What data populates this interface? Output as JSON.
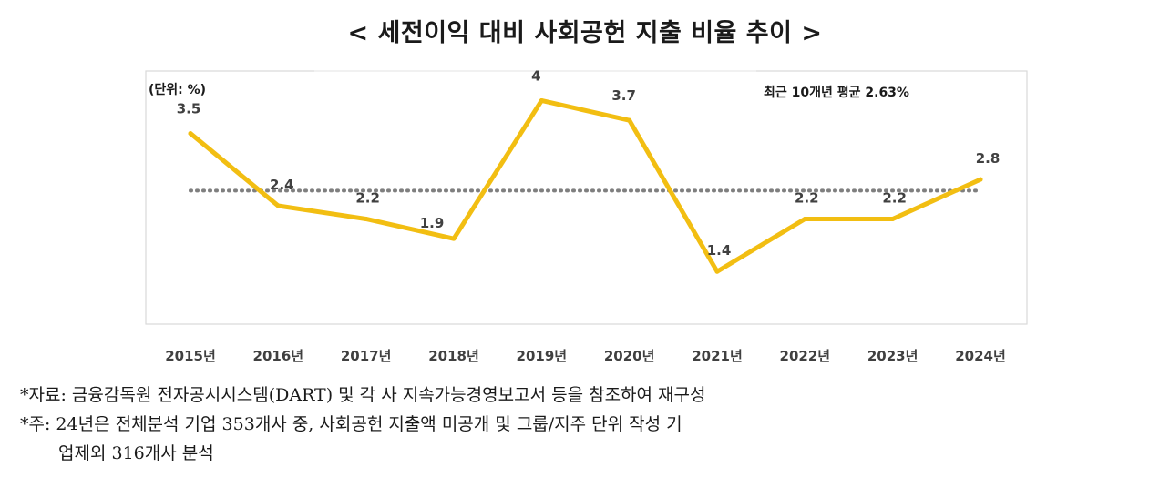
{
  "title": "< 세전이익 대비 사회공헌 지출 비율 추이 >",
  "unit_label": "(단위: %)",
  "average_label": "최근 10개년 평균 2.63%",
  "chart_data": {
    "type": "line",
    "title": "세전이익 대비 사회공헌 지출 비율 추이",
    "categories": [
      "2015년",
      "2016년",
      "2017년",
      "2018년",
      "2019년",
      "2020년",
      "2021년",
      "2022년",
      "2023년",
      "2024년"
    ],
    "series": [
      {
        "name": "사회공헌 지출 비율",
        "values": [
          3.5,
          2.4,
          2.2,
          1.9,
          4,
          3.7,
          1.4,
          2.2,
          2.2,
          2.8
        ],
        "color": "#F2BE12"
      }
    ],
    "data_labels": [
      "3.5",
      "2.4",
      "2.2",
      "1.9",
      "4",
      "3.7",
      "1.4",
      "2.2",
      "2.2",
      "2.8"
    ],
    "reference_line": {
      "name": "최근 10개년 평균",
      "value": 2.63,
      "color": "#7f7f7f",
      "style": "dotted"
    },
    "ylim": [
      0.6,
      4.45
    ],
    "ylabel": "(단위: %)",
    "xlabel": ""
  },
  "notes": {
    "source": "*자료: 금융감독원 전자공시시스템(DART) 및 각 사 지속가능경영보고서 등을 참조하여 재구성",
    "note_line1": "*주: 24년은 전체분석 기업 353개사 중, 사회공헌 지출액 미공개 및 그룹/지주 단위 작성 기",
    "note_line2": "업제외 316개사 분석"
  }
}
